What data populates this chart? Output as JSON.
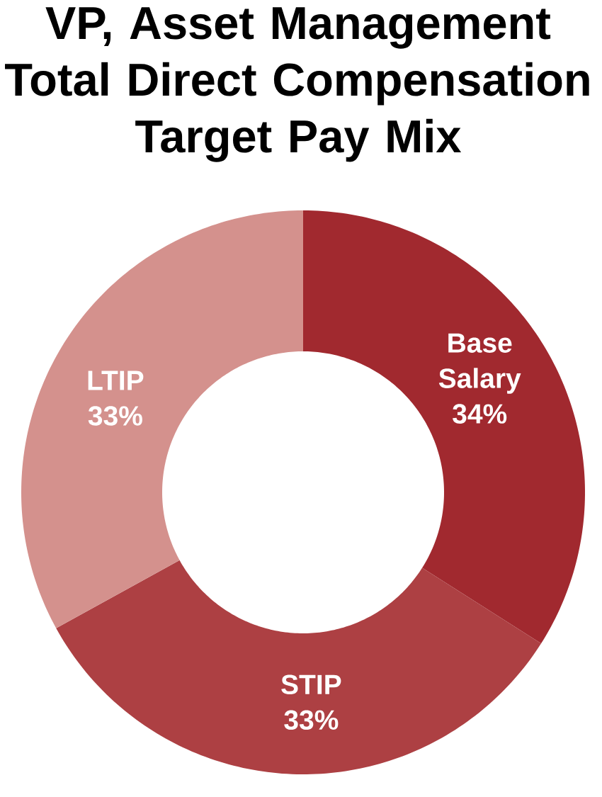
{
  "chart_data": {
    "type": "donut",
    "title": "VP, Asset Management Total Direct Compensation Target Pay Mix",
    "categories": [
      "Base Salary",
      "STIP",
      "LTIP"
    ],
    "values": [
      34,
      33,
      33
    ],
    "colors": [
      "#a1292f",
      "#ad4043",
      "#d4918d"
    ],
    "value_labels": [
      "34%",
      "33%",
      "33%"
    ]
  }
}
